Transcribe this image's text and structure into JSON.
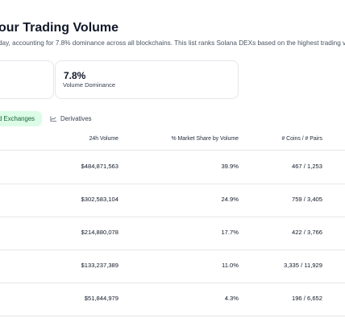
{
  "header": {
    "title": "our Trading Volume",
    "subtitle": "day, accounting for 7.8% dominance across all blockchains. This list ranks Solana DEXs based on the highest trading vo"
  },
  "stats": {
    "dominance_value": "7.8%",
    "dominance_label": "Volume Dominance"
  },
  "tabs": {
    "active_label": "d Exchanges",
    "derivatives_label": "Derivatives",
    "derivatives_icon": "line-chart-icon"
  },
  "table": {
    "columns": [
      "24h Volume",
      "% Market Share by Volume",
      "# Coins / # Pairs"
    ],
    "rows": [
      {
        "volume": "$484,871,563",
        "share": "39.9%",
        "pairs": "467 / 1,253"
      },
      {
        "volume": "$302,583,104",
        "share": "24.9%",
        "pairs": "759 / 3,405"
      },
      {
        "volume": "$214,880,078",
        "share": "17.7%",
        "pairs": "422 / 3,766"
      },
      {
        "volume": "$133,237,389",
        "share": "11.0%",
        "pairs": "3,335 / 11,929"
      },
      {
        "volume": "$51,844,979",
        "share": "4.3%",
        "pairs": "196 / 6,652"
      }
    ]
  }
}
